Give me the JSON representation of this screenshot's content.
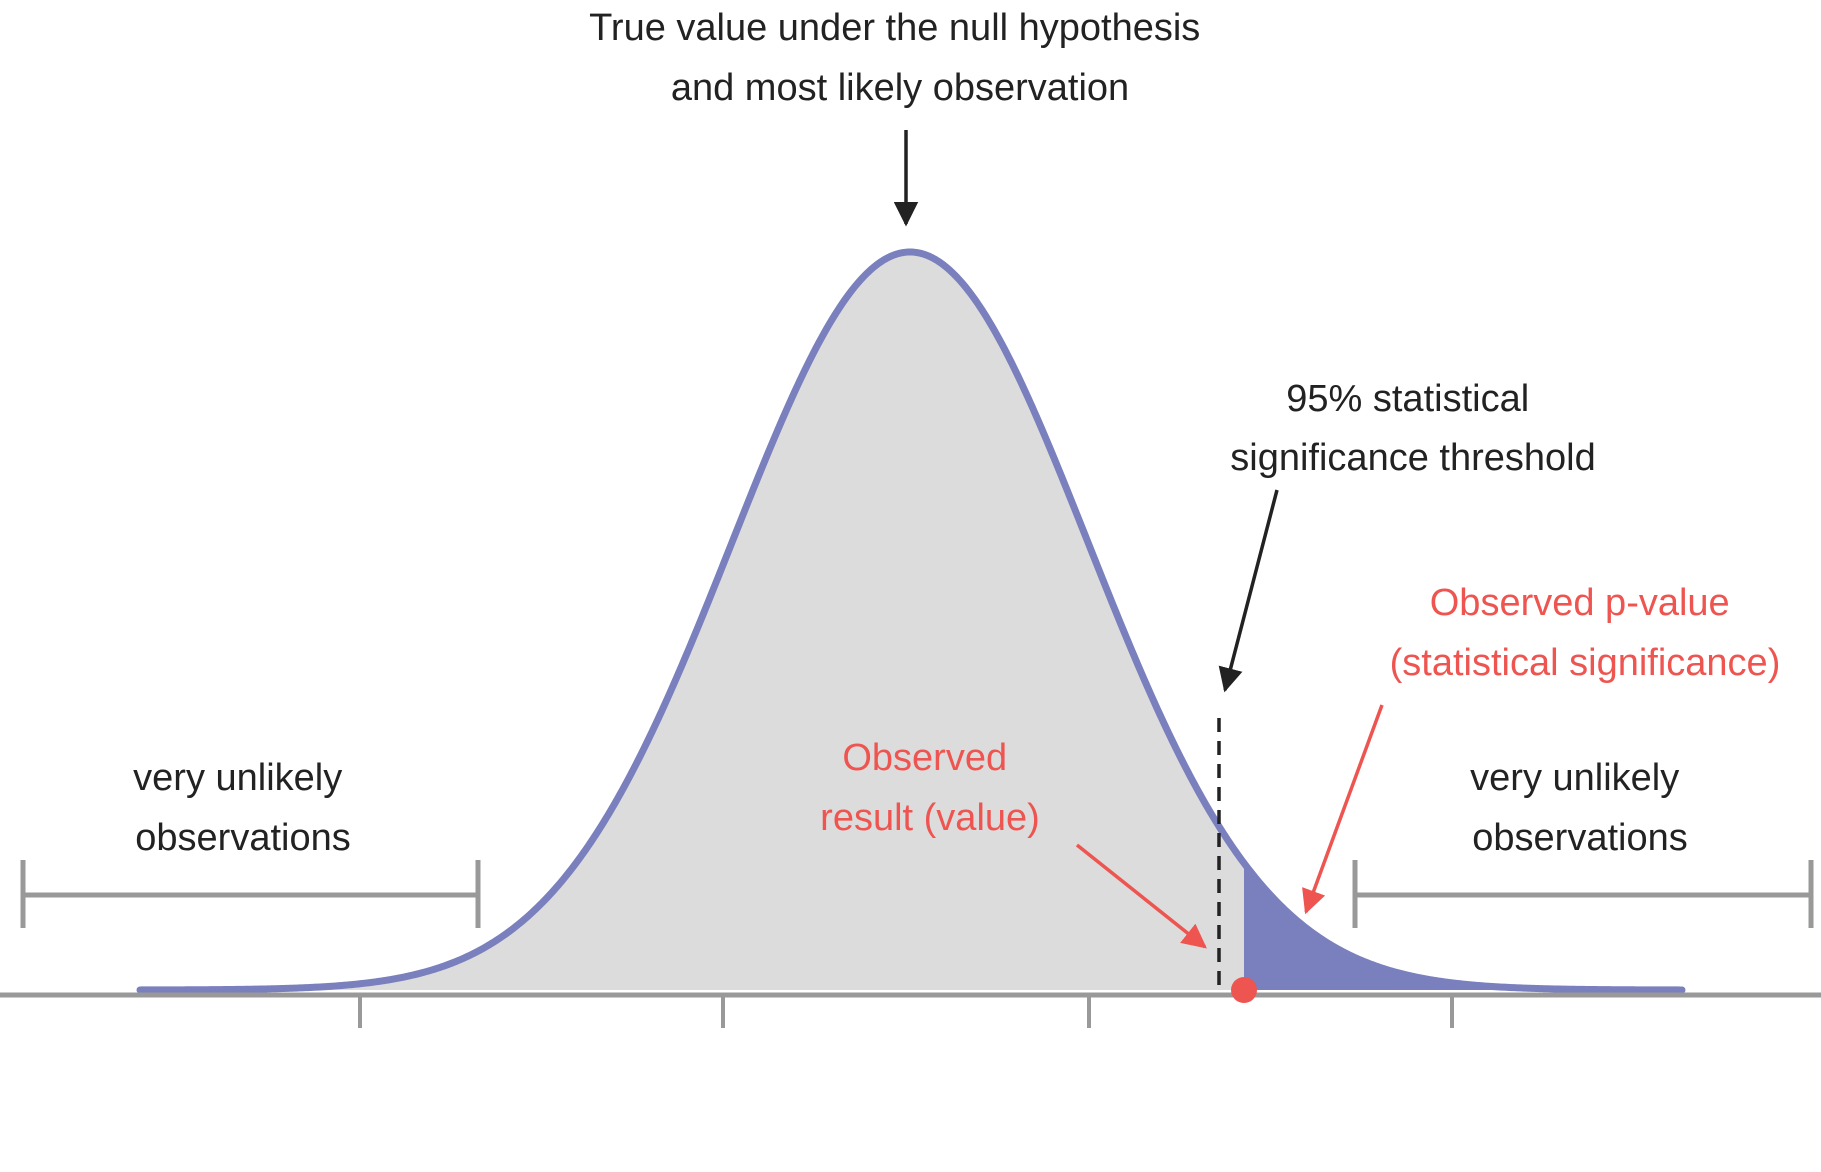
{
  "annotations": {
    "null_value": {
      "lines": [
        "True value under the null hypothesis",
        "and most likely observation"
      ]
    },
    "threshold": {
      "lines": [
        "95% statistical",
        "significance threshold"
      ]
    },
    "p_value": {
      "lines": [
        "Observed p-value",
        "(statistical significance)"
      ]
    },
    "observed_result": {
      "lines": [
        "Observed",
        "result (value)"
      ]
    },
    "left_tail": {
      "lines": [
        "very unlikely",
        "observations"
      ]
    },
    "right_tail": {
      "lines": [
        "very unlikely",
        "observations"
      ]
    }
  },
  "colors": {
    "curve": "#7a7fbd",
    "body_fill": "#dcdcdc",
    "tail_fill": "#7a7fbd",
    "axis": "#999999",
    "annotation_dark": "#222222",
    "annotation_red": "#ee5550"
  }
}
